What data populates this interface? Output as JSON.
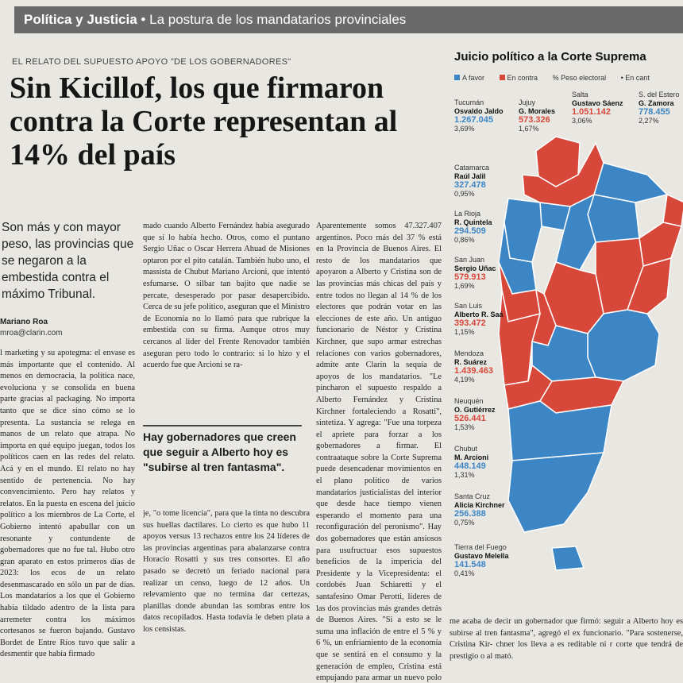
{
  "section_bar": {
    "section": "Política y Justicia",
    "separator": "•",
    "subtitle": "La postura de los mandatarios provinciales"
  },
  "kicker": "EL RELATO DEL SUPUESTO APOYO \"DE LOS GOBERNADORES\"",
  "headline": "Sin Kicillof, los que firmaron contra la Corte representan al 14% del país",
  "lead": "Son más y con mayor peso, las provincias que se negaron a la embestida contra el máximo Tribunal.",
  "author": "Mariano Roa",
  "email": "mroa@clarin.com",
  "column1": "l marketing y su apotegma: el envase es más importante que el contenido. Al menos en democracia, la política nace, evoluciona y se consolida en buena parte gracias al packaging. No importa tanto que se dice sino cómo se lo presenta. La sustancia se relega en manos de un relato que atrapa. No importa en qué equipo juegan, todos los políticos caen en las redes del relato. Acá y en el mundo. El relato no hay sentido de pertenencia. No hay convencimiento. Pero hay relatos y relatos. En la puesta en escena del juicio político a los miembros de La Corte, el Gobierno intentó apabullar con un resonante y contundente de gobernadores que no fue tal. Hubo otro gran aparato en estos primeros días de 2023: los ecos de un relato desenmascarado en sólo un par de días. Los mandatarios a los que el Gobierno había tildado adentro de la lista para arremeter contra los máximos cortesanos se fueron bajando. Gustavo Bordet de Entre Ríos tuvo que salir a desmentir que había firmado",
  "column2": "mado cuando Alberto Fernández había asegurado que sí lo había hecho. Otros, como el puntano Sergio Uñac o Oscar Herrera Ahuad de Misiones optaron por el pito catalán. También hubo uno, el massista de Chubut Mariano Arcioni, que intentó esfumarse. O silbar tan bajito que nadie se percate, desesperado por pasar desapercibido. Cerca de su jefe político, aseguran que el Ministro de Economía no lo llamó para que rubrique la embestida con su firma. Aunque otros muy cercanos al líder del Frente Renovador también aseguran pero todo lo contrario: si lo hizo y el acuerdo fue que Arcioni se ra-",
  "pullquote": "Hay gobernadores que creen que seguir a Alberto hoy es \"subirse al tren fantasma\".",
  "column2b": "je, \"o tome licencia\", para que la tinta no descubra sus huellas dactilares. Lo cierto es que hubo 11 apoyos versus 13 rechazos entre los 24 líderes de las provincias argentinas para abalanzarse contra Horacio Rosatti y sus tres consortes. El año pasado se decretó un feriado nacional para realizar un censo, luego de 12 años. Un relevamiento que no termina dar certezas, planillas donde abundan las sombras entre los datos recopilados. Hasta todavía le deben plata a los censistas.",
  "column3": "Aparentemente somos 47.327.407 argentinos. Poco más del 37 % está en la Provincia de Buenos Aires. El resto de los mandatarios que apoyaron a Alberto y Cristina son de las provincias más chicas del país y entre todos no llegan al 14 % de los electores que podrán votar en las elecciones de este año. Un antiguo funcionario de Néstor y Cristina Kirchner, que supo armar estrechas relaciones con varios gobernadores, admite ante Clarín la sequía de apoyos de los mandatarios. \"Le pincharon el supuesto respaldo a Alberto Fernández y Cristina Kirchner fortaleciendo a Rosatti\", sintetiza. Y agrega: \"Fue una torpeza el apriete para forzar a los gobernadores a firmar. El contraataque sobre la Corte Suprema puede desencadenar movimientos en el plano político de varios mandatarios justicialistas del interior que desde hace tiempo vienen esperando el momento para una reconfiguración del peronismo\". Hay dos gobernadores que están ansiosos para usufructuar esos supuestos beneficios de la impericia del Presidente y la Vicepresidenta: el cordobés Juan Schiaretti y el santafesino Omar Perotti, líderes de las dos provincias más grandes detrás de Buenos Aires. \"Si a esto se le suma una inflación de entre el 5 % y 6 %, un enfriamiento de la economía que se sentirá en el consumo y la generación de empleo, Cristina está empujando para armar un nuevo polo en el peronismo que no le responda. Veremos. Co-",
  "bottom_text": "me acaba de decir un gobernador que firmó: seguir a Alberto hoy es subirse al tren fantasma\", agregó el ex funcionario. \"Para sostenerse, Cristina Kir- chner los lleva a es reditable ni r corte que tendrá de prestigio o al mató.",
  "chart": {
    "title": "Juicio político a la Corte Suprema",
    "legend": {
      "favor": "A favor",
      "contra": "En contra",
      "peso": "% Peso electoral",
      "cant": "En cant"
    },
    "colors": {
      "favor": "#3d86c6",
      "contra": "#d8483a"
    },
    "governors": [
      {
        "province": "Tucumán",
        "name": "Osvaldo Jaldo",
        "votes": "1.267.045",
        "pct": "3,69%",
        "stance": "favor"
      },
      {
        "province": "Jujuy",
        "name": "G. Morales",
        "votes": "573.326",
        "pct": "1,67%",
        "stance": "contra"
      },
      {
        "province": "Salta",
        "name": "Gustavo Sáenz",
        "votes": "1.051.142",
        "pct": "3,06%",
        "stance": "contra"
      },
      {
        "province": "S. del Estero",
        "name": "G. Zamora",
        "votes": "778.455",
        "pct": "2,27%",
        "stance": "favor"
      },
      {
        "province": "Catamarca",
        "name": "Raúl Jalil",
        "votes": "327.478",
        "pct": "0,95%",
        "stance": "favor"
      },
      {
        "province": "La Rioja",
        "name": "R. Quintela",
        "votes": "294.509",
        "pct": "0,86%",
        "stance": "favor"
      },
      {
        "province": "San Juan",
        "name": "Sergio Uñac",
        "votes": "579.913",
        "pct": "1,69%",
        "stance": "contra"
      },
      {
        "province": "San Luis",
        "name": "Alberto R. Saá",
        "votes": "393.472",
        "pct": "1,15%",
        "stance": "contra"
      },
      {
        "province": "Mendoza",
        "name": "R. Suárez",
        "votes": "1.439.463",
        "pct": "4,19%",
        "stance": "contra"
      },
      {
        "province": "Neuquén",
        "name": "O. Gutiérrez",
        "votes": "526.441",
        "pct": "1,53%",
        "stance": "contra"
      },
      {
        "province": "Chubut",
        "name": "M. Arcioni",
        "votes": "448.149",
        "pct": "1,31%",
        "stance": "favor"
      },
      {
        "province": "Santa Cruz",
        "name": "Alicia Kirchner",
        "votes": "256.388",
        "pct": "0,75%",
        "stance": "favor"
      },
      {
        "province": "Tierra del Fuego",
        "name": "Gustavo Melella",
        "votes": "141.548",
        "pct": "0,41%",
        "stance": "favor"
      }
    ]
  }
}
